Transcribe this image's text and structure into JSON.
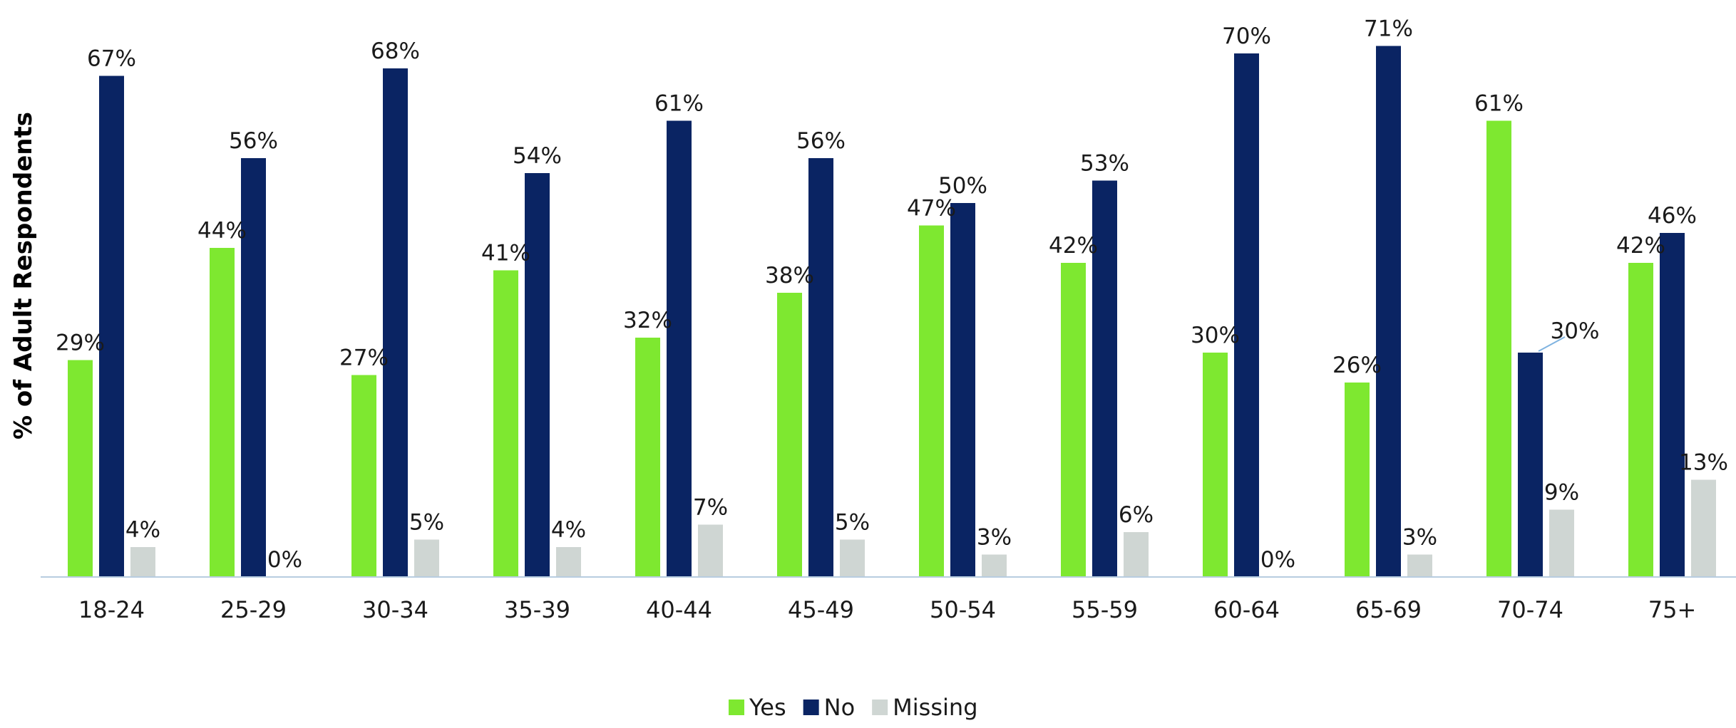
{
  "chart_data": {
    "type": "bar",
    "ylabel": "% of Adult Respondents",
    "categories": [
      "18-24",
      "25-29",
      "30-34",
      "35-39",
      "40-44",
      "45-49",
      "50-54",
      "55-59",
      "60-64",
      "65-69",
      "70-74",
      "75+"
    ],
    "series": [
      {
        "name": "Yes",
        "color": "#7ee830",
        "values": [
          29,
          44,
          27,
          41,
          32,
          38,
          47,
          42,
          30,
          26,
          61,
          42
        ]
      },
      {
        "name": "No",
        "color": "#0a2463",
        "values": [
          67,
          56,
          68,
          54,
          61,
          56,
          50,
          53,
          70,
          71,
          30,
          46
        ]
      },
      {
        "name": "Missing",
        "color": "#cfd6d3",
        "values": [
          4,
          0,
          5,
          4,
          7,
          5,
          3,
          6,
          0,
          3,
          9,
          13
        ]
      }
    ],
    "value_suffix": "%",
    "ylim": [
      0,
      75
    ],
    "grid": false,
    "legend_position": "bottom-center",
    "axis_color": "#b8cde0"
  }
}
